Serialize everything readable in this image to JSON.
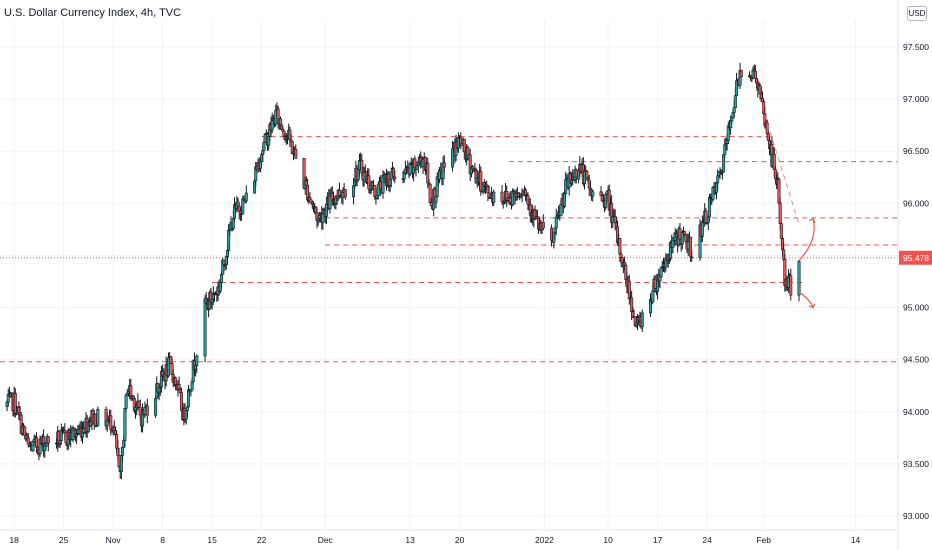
{
  "title": "U.S. Dollar Currency Index, 4h, TVC",
  "currency_badge": "USD",
  "colors": {
    "up": "#26a69a",
    "down": "#ef5350",
    "candle": "#131722",
    "level_line": "#ef5350",
    "price_label_bg": "#ef5350",
    "grid": "#f0f3fa"
  },
  "chart_data": {
    "type": "candlestick",
    "title": "U.S. Dollar Currency Index, 4h, TVC",
    "ylim": [
      92.9,
      97.9
    ],
    "y_ticks": [
      "93.000",
      "93.500",
      "94.000",
      "94.500",
      "95.000",
      "95.500",
      "96.000",
      "96.500",
      "97.000",
      "97.500"
    ],
    "x_ticks": [
      "18",
      "25",
      "Nov",
      "8",
      "15",
      "22",
      "Dec",
      "13",
      "20",
      "2022",
      "10",
      "17",
      "24",
      "Feb",
      "14"
    ],
    "x_range": [
      "2021-10-16",
      "2022-02-20"
    ],
    "grid": true,
    "last_price": "95.478",
    "price_path": [
      {
        "date": "2021-10-16",
        "close": 94.05
      },
      {
        "date": "2021-10-18",
        "close": 94.1
      },
      {
        "date": "2021-10-20",
        "close": 93.65
      },
      {
        "date": "2021-10-22",
        "close": 93.7
      },
      {
        "date": "2021-10-25",
        "close": 93.75
      },
      {
        "date": "2021-10-27",
        "close": 93.8
      },
      {
        "date": "2021-10-29",
        "close": 93.95
      },
      {
        "date": "2021-11-01",
        "close": 93.9
      },
      {
        "date": "2021-11-02",
        "close": 93.35
      },
      {
        "date": "2021-11-03",
        "close": 94.25
      },
      {
        "date": "2021-11-05",
        "close": 93.95
      },
      {
        "date": "2021-11-07",
        "close": 94.2
      },
      {
        "date": "2021-11-09",
        "close": 94.45
      },
      {
        "date": "2021-11-10",
        "close": 94.25
      },
      {
        "date": "2021-11-11",
        "close": 93.95
      },
      {
        "date": "2021-11-12",
        "close": 94.3
      },
      {
        "date": "2021-11-14",
        "close": 95.0
      },
      {
        "date": "2021-11-16",
        "close": 95.2
      },
      {
        "date": "2021-11-18",
        "close": 95.9
      },
      {
        "date": "2021-11-20",
        "close": 96.05
      },
      {
        "date": "2021-11-22",
        "close": 96.5
      },
      {
        "date": "2021-11-24",
        "close": 96.85
      },
      {
        "date": "2021-11-26",
        "close": 96.6
      },
      {
        "date": "2021-11-28",
        "close": 96.2
      },
      {
        "date": "2021-11-30",
        "close": 95.85
      },
      {
        "date": "2021-12-02",
        "close": 96.05
      },
      {
        "date": "2021-12-04",
        "close": 96.15
      },
      {
        "date": "2021-12-06",
        "close": 96.35
      },
      {
        "date": "2021-12-08",
        "close": 96.1
      },
      {
        "date": "2021-12-10",
        "close": 96.25
      },
      {
        "date": "2021-12-13",
        "close": 96.3
      },
      {
        "date": "2021-12-15",
        "close": 96.45
      },
      {
        "date": "2021-12-16",
        "close": 96.0
      },
      {
        "date": "2021-12-18",
        "close": 96.4
      },
      {
        "date": "2021-12-20",
        "close": 96.6
      },
      {
        "date": "2021-12-22",
        "close": 96.3
      },
      {
        "date": "2021-12-24",
        "close": 96.1
      },
      {
        "date": "2021-12-27",
        "close": 96.05
      },
      {
        "date": "2021-12-29",
        "close": 96.15
      },
      {
        "date": "2021-12-31",
        "close": 95.8
      },
      {
        "date": "2022-01-02",
        "close": 95.6
      },
      {
        "date": "2022-01-04",
        "close": 96.15
      },
      {
        "date": "2022-01-06",
        "close": 96.35
      },
      {
        "date": "2022-01-08",
        "close": 96.05
      },
      {
        "date": "2022-01-10",
        "close": 96.05
      },
      {
        "date": "2022-01-11",
        "close": 95.75
      },
      {
        "date": "2022-01-13",
        "close": 95.15
      },
      {
        "date": "2022-01-14",
        "close": 94.8
      },
      {
        "date": "2022-01-16",
        "close": 95.1
      },
      {
        "date": "2022-01-18",
        "close": 95.45
      },
      {
        "date": "2022-01-20",
        "close": 95.7
      },
      {
        "date": "2022-01-22",
        "close": 95.55
      },
      {
        "date": "2022-01-24",
        "close": 95.9
      },
      {
        "date": "2022-01-26",
        "close": 96.3
      },
      {
        "date": "2022-01-28",
        "close": 97.05
      },
      {
        "date": "2022-01-29",
        "close": 97.35
      },
      {
        "date": "2022-01-31",
        "close": 97.2
      },
      {
        "date": "2022-02-02",
        "close": 96.5
      },
      {
        "date": "2022-02-03",
        "close": 96.15
      },
      {
        "date": "2022-02-04",
        "close": 95.25
      },
      {
        "date": "2022-02-05",
        "close": 95.2
      },
      {
        "date": "2022-02-06",
        "close": 95.478
      }
    ],
    "level_lines": [
      {
        "value": 96.64,
        "from": "2021-11-22",
        "to": "2022-02-02"
      },
      {
        "value": 96.4,
        "from": "2021-12-27",
        "to": "2022-02-20"
      },
      {
        "value": 95.86,
        "from": "2021-12-01",
        "to": "2022-02-20"
      },
      {
        "value": 95.6,
        "from": "2021-12-01",
        "to": "2022-02-20"
      },
      {
        "value": 95.24,
        "from": "2021-11-15",
        "to": "2022-02-07"
      },
      {
        "value": 94.48,
        "from": "2021-10-16",
        "to": "2022-02-20"
      }
    ],
    "annotations": [
      {
        "type": "arrow",
        "direction": "up",
        "from": {
          "date": "2022-02-06",
          "value": 95.45
        },
        "to": {
          "date": "2022-02-08",
          "value": 95.85
        }
      },
      {
        "type": "arrow",
        "direction": "down",
        "from": {
          "date": "2022-02-06",
          "value": 95.15
        },
        "to": {
          "date": "2022-02-08",
          "value": 95.0
        }
      },
      {
        "type": "trendline",
        "from": {
          "date": "2022-01-31",
          "value": 97.1
        },
        "to": {
          "date": "2022-02-06",
          "value": 95.8
        }
      }
    ]
  }
}
